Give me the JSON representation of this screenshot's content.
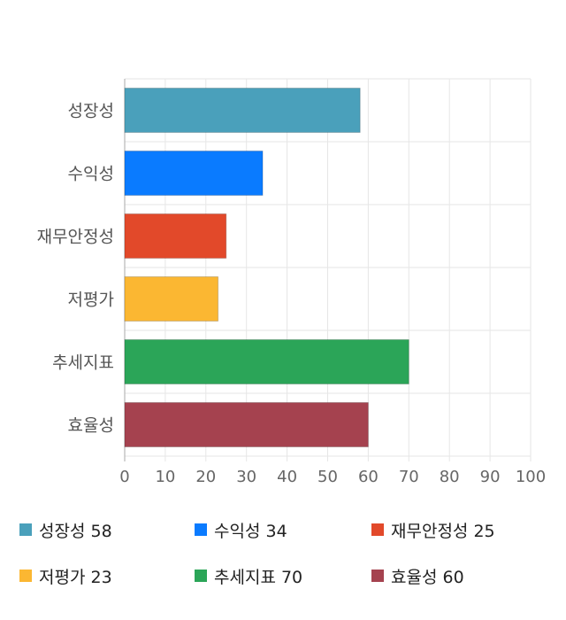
{
  "chart_data": {
    "type": "bar",
    "orientation": "horizontal",
    "categories": [
      "성장성",
      "수익성",
      "재무안정성",
      "저평가",
      "추세지표",
      "효율성"
    ],
    "values": [
      58,
      34,
      25,
      23,
      70,
      60
    ],
    "colors": [
      "#4aa0bb",
      "#0a7bff",
      "#e2492a",
      "#fbb732",
      "#2ba558",
      "#a5424f"
    ],
    "xlim": [
      0,
      100
    ],
    "x_ticks": [
      0,
      10,
      20,
      30,
      40,
      50,
      60,
      70,
      80,
      90,
      100
    ],
    "grid": true,
    "legend_position": "bottom"
  },
  "legend": {
    "items": [
      {
        "label": "성장성",
        "value": "58"
      },
      {
        "label": "수익성",
        "value": "34"
      },
      {
        "label": "재무안정성",
        "value": "25"
      },
      {
        "label": "저평가",
        "value": "23"
      },
      {
        "label": "추세지표",
        "value": "70"
      },
      {
        "label": "효율성",
        "value": "60"
      }
    ]
  }
}
